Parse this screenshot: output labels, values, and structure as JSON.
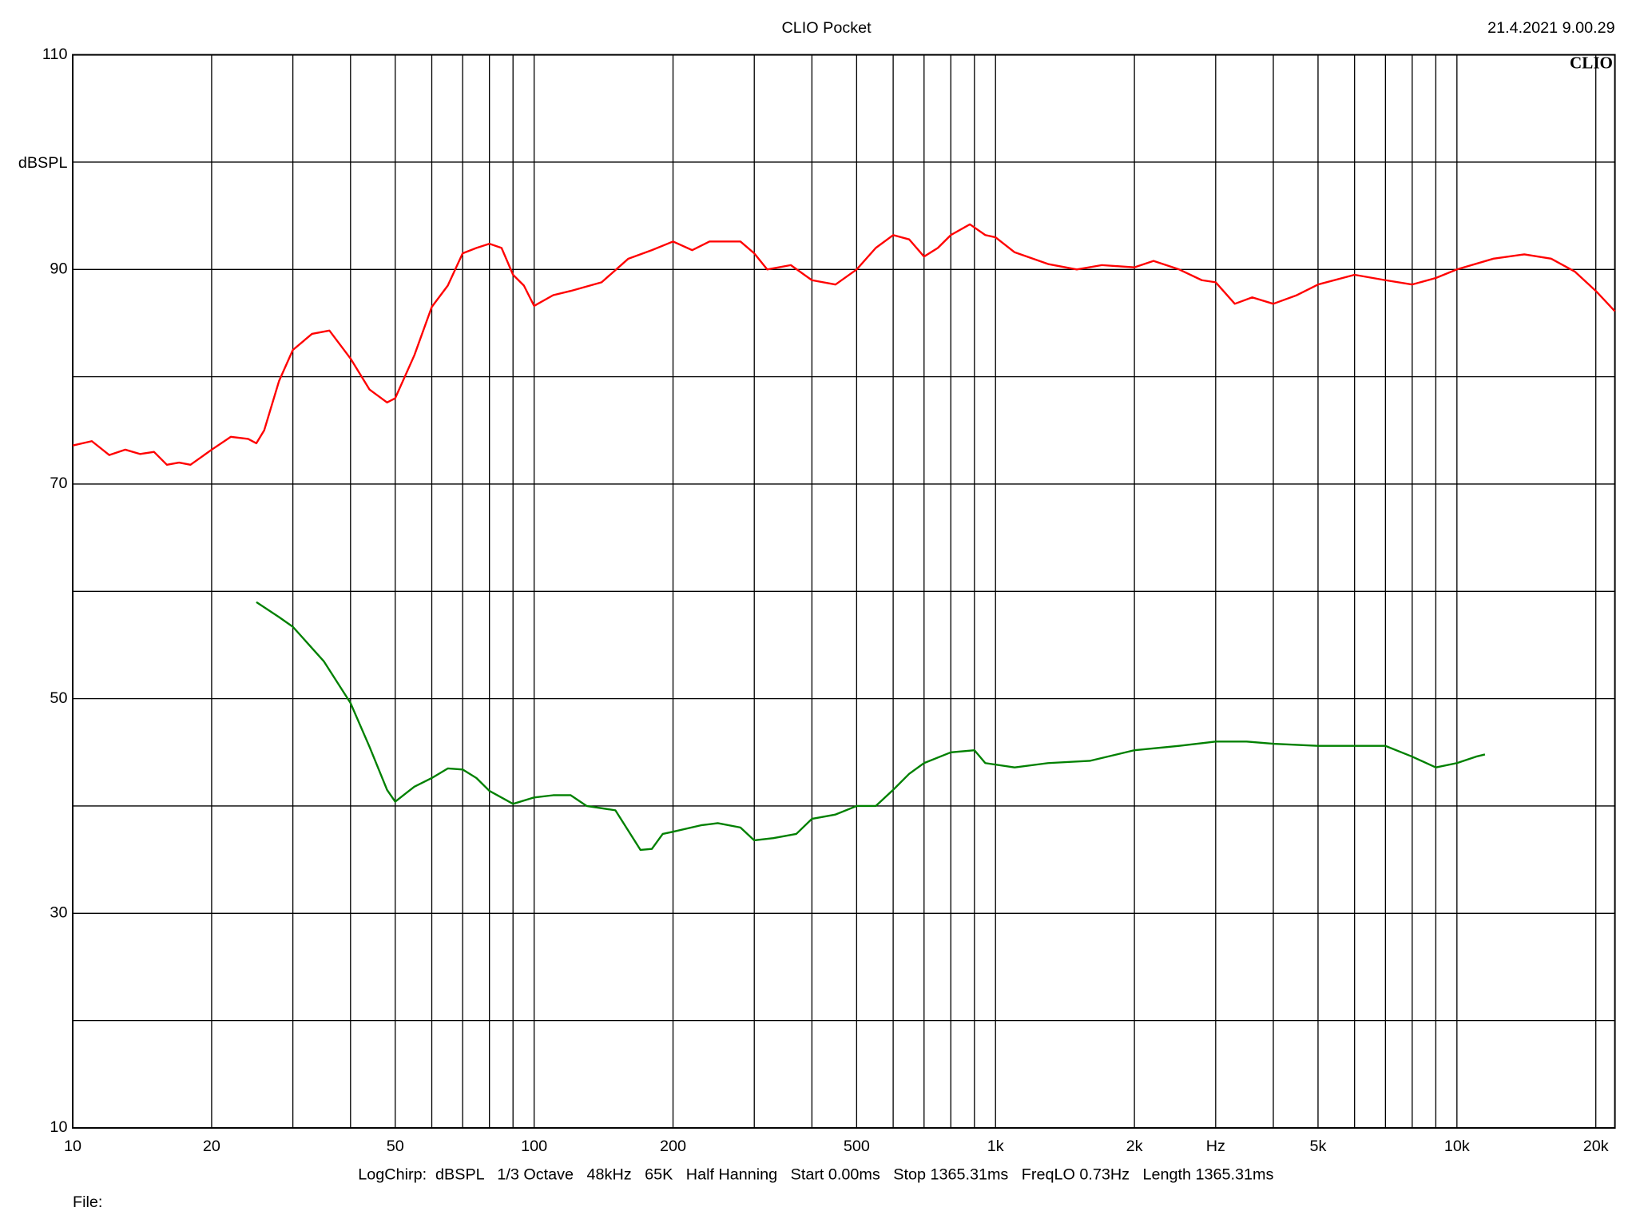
{
  "chart_data": {
    "type": "line",
    "title": "CLIO Pocket",
    "timestamp": "21.4.2021 9.00.29",
    "logo": "CLIO",
    "y_label": "dBSPL",
    "x_label": "Hz",
    "footer": "LogChirp:  dBSPL   1/3 Octave   48kHz   65K   Half Hanning   Start 0.00ms   Stop 1365.31ms   FreqLO 0.73Hz   Length 1365.31ms",
    "file_label": "File:",
    "x_log": true,
    "grid": true,
    "xlim": [
      10,
      22000
    ],
    "ylim": [
      10,
      110
    ],
    "xticks": [
      10,
      20,
      50,
      100,
      200,
      500,
      {
        "value": 1000,
        "label": "1k"
      },
      {
        "value": 2000,
        "label": "2k"
      },
      {
        "value": 5000,
        "label": "5k"
      },
      {
        "value": 10000,
        "label": "10k"
      },
      {
        "value": 20000,
        "label": "20k"
      }
    ],
    "x_minor_grid": [
      30,
      40,
      60,
      70,
      80,
      90,
      300,
      400,
      600,
      700,
      800,
      900,
      3000,
      4000,
      6000,
      7000,
      8000,
      9000
    ],
    "yticks": [
      10,
      30,
      50,
      70,
      90,
      110
    ],
    "y_minor_grid": [
      20,
      40,
      60,
      80,
      100
    ],
    "series": [
      {
        "color": "#ff0000",
        "x": [
          10,
          11,
          12,
          13,
          14,
          15,
          16,
          17,
          18,
          20,
          22,
          24,
          25,
          26,
          28,
          30,
          33,
          36,
          40,
          44,
          48,
          50,
          55,
          60,
          65,
          70,
          75,
          80,
          85,
          90,
          95,
          100,
          110,
          120,
          140,
          160,
          180,
          200,
          220,
          240,
          280,
          300,
          320,
          360,
          400,
          450,
          500,
          550,
          600,
          650,
          700,
          750,
          800,
          880,
          950,
          1000,
          1100,
          1300,
          1500,
          1700,
          2000,
          2200,
          2500,
          2800,
          3000,
          3300,
          3600,
          4000,
          4500,
          5000,
          6000,
          7000,
          8000,
          9000,
          10000,
          12000,
          14000,
          16000,
          18000,
          20000,
          22000
        ],
        "values": [
          73.6,
          74,
          72.7,
          73.2,
          72.8,
          73,
          71.8,
          72,
          71.8,
          73.2,
          74.4,
          74.2,
          73.8,
          75,
          79.6,
          82.5,
          84,
          84.3,
          81.7,
          78.8,
          77.6,
          78,
          82,
          86.5,
          88.5,
          91.5,
          92,
          92.4,
          92,
          89.5,
          88.5,
          86.6,
          87.6,
          88,
          88.8,
          91,
          91.8,
          92.6,
          91.8,
          92.6,
          92.6,
          91.5,
          90,
          90.4,
          89,
          88.6,
          90,
          92,
          93.2,
          92.8,
          91.2,
          92,
          93.2,
          94.2,
          93.2,
          93,
          91.6,
          90.5,
          90,
          90.4,
          90.2,
          90.8,
          90,
          89,
          88.8,
          86.8,
          87.4,
          86.8,
          87.6,
          88.6,
          89.5,
          89,
          88.6,
          89.2,
          90,
          91,
          91.4,
          91,
          89.8,
          88,
          86.1
        ]
      },
      {
        "color": "#008000",
        "x": [
          25,
          28,
          30,
          35,
          40,
          44,
          48,
          50,
          55,
          60,
          65,
          70,
          75,
          80,
          90,
          100,
          110,
          120,
          130,
          150,
          170,
          180,
          190,
          200,
          230,
          250,
          280,
          300,
          330,
          370,
          400,
          450,
          500,
          550,
          600,
          650,
          700,
          800,
          900,
          950,
          1100,
          1300,
          1600,
          2000,
          2500,
          3000,
          3500,
          4000,
          5000,
          6000,
          7000,
          8000,
          9000,
          10000,
          11000,
          11500
        ],
        "values": [
          59,
          57.6,
          56.7,
          53.5,
          49.6,
          45.5,
          41.5,
          40.4,
          41.8,
          42.6,
          43.5,
          43.4,
          42.6,
          41.4,
          40.2,
          40.8,
          41,
          41,
          40,
          39.6,
          35.9,
          36,
          37.4,
          37.6,
          38.2,
          38.4,
          38,
          36.8,
          37,
          37.4,
          38.8,
          39.2,
          40,
          40,
          41.5,
          43,
          44,
          45,
          45.2,
          44,
          43.6,
          44,
          44.2,
          45.2,
          45.6,
          46,
          46,
          45.8,
          45.6,
          45.6,
          45.6,
          44.6,
          43.6,
          44,
          44.6,
          44.8
        ]
      }
    ]
  }
}
